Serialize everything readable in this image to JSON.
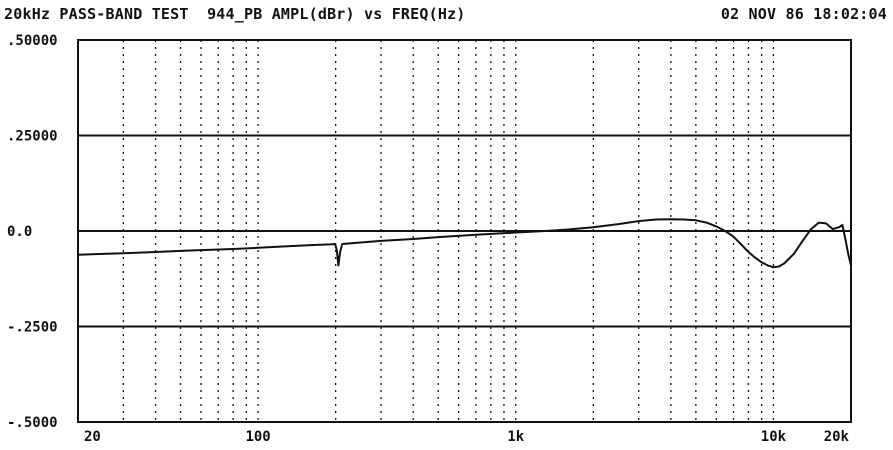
{
  "header": {
    "title": "20kHz PASS-BAND TEST  944_PB AMPL(dBr) vs FREQ(Hz)",
    "timestamp": "02 NOV 86 18:02:04"
  },
  "chart_data": {
    "type": "line",
    "title": "20kHz PASS-BAND TEST  944_PB AMPL(dBr) vs FREQ(Hz)",
    "xlabel": "",
    "ylabel": "",
    "x_scale": "log",
    "xlim": [
      20,
      20000
    ],
    "ylim": [
      -0.5,
      0.5
    ],
    "x_tick_labels": [
      {
        "value": 20,
        "label": "20"
      },
      {
        "value": 100,
        "label": "100"
      },
      {
        "value": 1000,
        "label": "1k"
      },
      {
        "value": 10000,
        "label": "10k"
      },
      {
        "value": 20000,
        "label": "20k"
      }
    ],
    "y_tick_labels": [
      {
        "value": 0.5,
        "label": ".50000"
      },
      {
        "value": 0.25,
        "label": ".25000"
      },
      {
        "value": 0.0,
        "label": "0.0"
      },
      {
        "value": -0.25,
        "label": "-.2500"
      },
      {
        "value": -0.5,
        "label": "-.5000"
      }
    ],
    "grid": {
      "x": "dotted, log decades",
      "y": "solid at labeled ticks"
    },
    "series": [
      {
        "color": "#111111",
        "points": [
          [
            20,
            -0.062
          ],
          [
            25,
            -0.06
          ],
          [
            30,
            -0.058
          ],
          [
            40,
            -0.055
          ],
          [
            50,
            -0.052
          ],
          [
            60,
            -0.05
          ],
          [
            80,
            -0.047
          ],
          [
            100,
            -0.044
          ],
          [
            130,
            -0.04
          ],
          [
            160,
            -0.037
          ],
          [
            190,
            -0.035
          ],
          [
            199,
            -0.034
          ],
          [
            202,
            -0.05
          ],
          [
            205,
            -0.09
          ],
          [
            208,
            -0.055
          ],
          [
            212,
            -0.034
          ],
          [
            250,
            -0.03
          ],
          [
            300,
            -0.026
          ],
          [
            400,
            -0.021
          ],
          [
            500,
            -0.016
          ],
          [
            700,
            -0.01
          ],
          [
            1000,
            -0.004
          ],
          [
            1300,
            0.0
          ],
          [
            1600,
            0.004
          ],
          [
            2000,
            0.01
          ],
          [
            2500,
            0.018
          ],
          [
            3000,
            0.026
          ],
          [
            3500,
            0.03
          ],
          [
            4000,
            0.031
          ],
          [
            4500,
            0.03
          ],
          [
            5000,
            0.028
          ],
          [
            5500,
            0.022
          ],
          [
            6000,
            0.012
          ],
          [
            6500,
            0.0
          ],
          [
            7000,
            -0.015
          ],
          [
            7500,
            -0.035
          ],
          [
            8000,
            -0.055
          ],
          [
            8500,
            -0.07
          ],
          [
            9000,
            -0.082
          ],
          [
            9500,
            -0.09
          ],
          [
            10000,
            -0.095
          ],
          [
            10500,
            -0.093
          ],
          [
            11000,
            -0.085
          ],
          [
            12000,
            -0.06
          ],
          [
            13000,
            -0.025
          ],
          [
            14000,
            0.005
          ],
          [
            15000,
            0.022
          ],
          [
            16000,
            0.02
          ],
          [
            17000,
            0.005
          ],
          [
            18000,
            0.01
          ],
          [
            18500,
            0.016
          ],
          [
            19000,
            -0.02
          ],
          [
            19500,
            -0.06
          ],
          [
            20000,
            -0.09
          ]
        ]
      }
    ]
  },
  "colors": {
    "background": "#ffffff",
    "ink": "#111111"
  }
}
